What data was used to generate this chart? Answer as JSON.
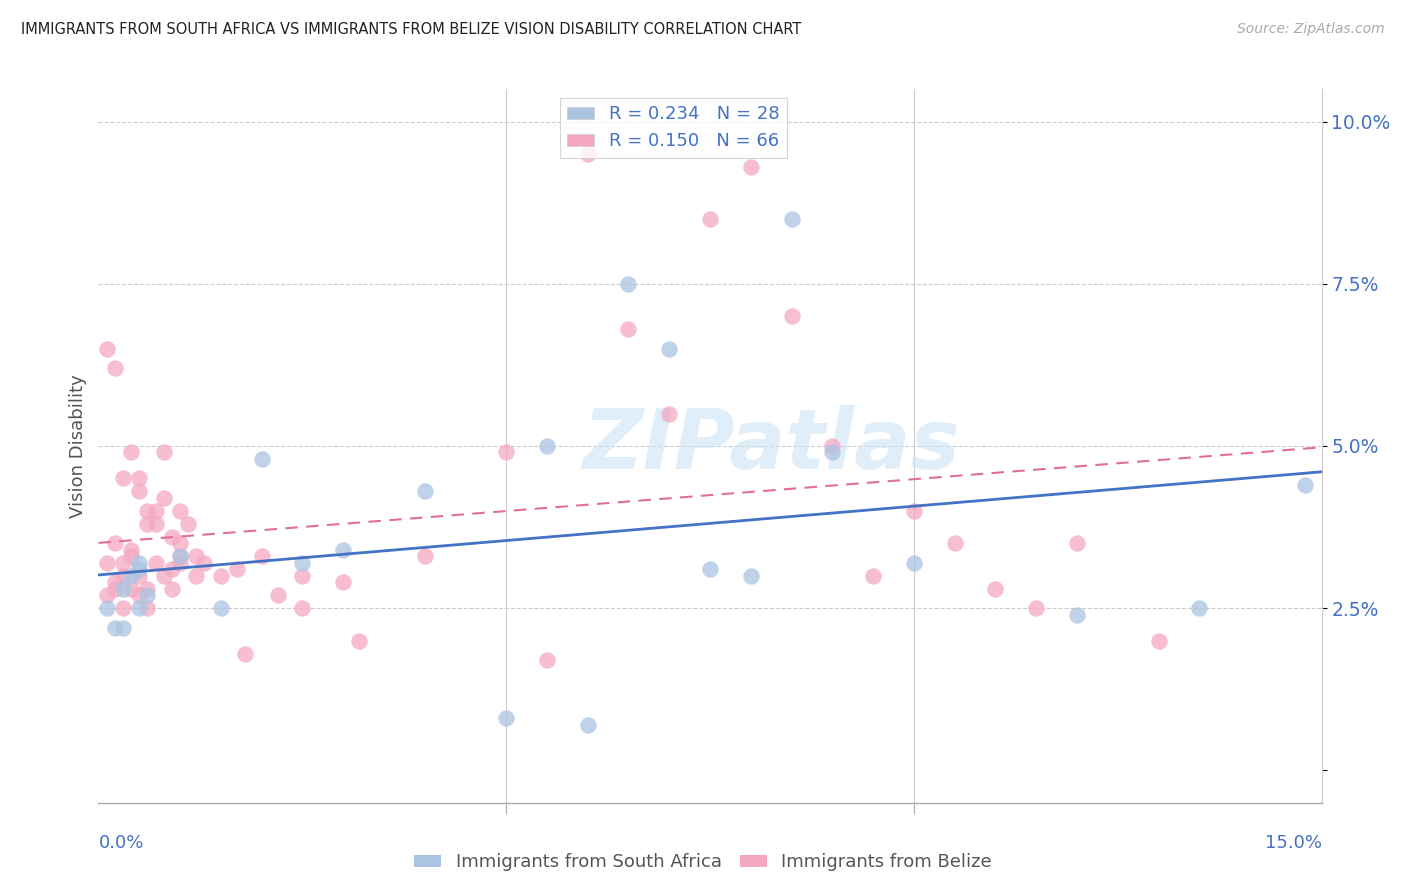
{
  "title": "IMMIGRANTS FROM SOUTH AFRICA VS IMMIGRANTS FROM BELIZE VISION DISABILITY CORRELATION CHART",
  "source": "Source: ZipAtlas.com",
  "ylabel": "Vision Disability",
  "xlim": [
    0.0,
    0.15
  ],
  "ylim": [
    -0.005,
    0.105
  ],
  "south_africa_color": "#aac4e2",
  "belize_color": "#f4a8c0",
  "south_africa_line_color": "#4472c4",
  "belize_line_color": "#e07090",
  "watermark": "ZIPatlas",
  "sa_x": [
    0.001,
    0.002,
    0.003,
    0.003,
    0.004,
    0.005,
    0.005,
    0.006,
    0.01,
    0.015,
    0.02,
    0.025,
    0.03,
    0.04,
    0.05,
    0.055,
    0.06,
    0.065,
    0.07,
    0.075,
    0.08,
    0.085,
    0.09,
    0.1,
    0.12,
    0.135,
    0.148,
    0.005
  ],
  "sa_y": [
    0.025,
    0.022,
    0.028,
    0.022,
    0.03,
    0.025,
    0.031,
    0.027,
    0.033,
    0.025,
    0.048,
    0.032,
    0.034,
    0.043,
    0.008,
    0.05,
    0.007,
    0.075,
    0.065,
    0.031,
    0.03,
    0.085,
    0.049,
    0.032,
    0.024,
    0.025,
    0.044,
    0.032
  ],
  "bel_x": [
    0.001,
    0.001,
    0.001,
    0.002,
    0.002,
    0.002,
    0.003,
    0.003,
    0.003,
    0.004,
    0.004,
    0.004,
    0.005,
    0.005,
    0.005,
    0.006,
    0.006,
    0.006,
    0.007,
    0.007,
    0.008,
    0.008,
    0.009,
    0.009,
    0.01,
    0.01,
    0.01,
    0.011,
    0.012,
    0.013,
    0.015,
    0.017,
    0.018,
    0.02,
    0.022,
    0.025,
    0.025,
    0.03,
    0.032,
    0.04,
    0.05,
    0.055,
    0.06,
    0.065,
    0.07,
    0.075,
    0.08,
    0.085,
    0.09,
    0.095,
    0.1,
    0.105,
    0.11,
    0.115,
    0.12,
    0.13,
    0.002,
    0.003,
    0.004,
    0.005,
    0.006,
    0.007,
    0.008,
    0.009,
    0.01,
    0.012
  ],
  "bel_y": [
    0.027,
    0.032,
    0.065,
    0.029,
    0.028,
    0.035,
    0.025,
    0.03,
    0.032,
    0.028,
    0.033,
    0.034,
    0.03,
    0.027,
    0.043,
    0.025,
    0.028,
    0.04,
    0.032,
    0.04,
    0.03,
    0.049,
    0.028,
    0.031,
    0.032,
    0.033,
    0.04,
    0.038,
    0.033,
    0.032,
    0.03,
    0.031,
    0.018,
    0.033,
    0.027,
    0.03,
    0.025,
    0.029,
    0.02,
    0.033,
    0.049,
    0.017,
    0.095,
    0.068,
    0.055,
    0.085,
    0.093,
    0.07,
    0.05,
    0.03,
    0.04,
    0.035,
    0.028,
    0.025,
    0.035,
    0.02,
    0.062,
    0.045,
    0.049,
    0.045,
    0.038,
    0.038,
    0.042,
    0.036,
    0.035,
    0.03
  ]
}
